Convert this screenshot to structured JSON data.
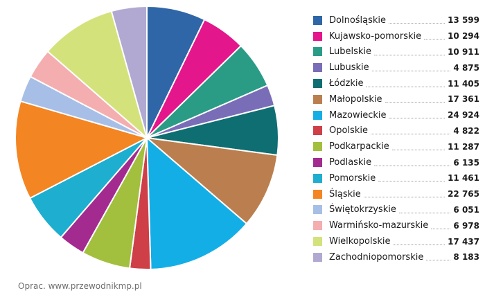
{
  "chart_data": {
    "type": "pie",
    "categories": [
      "Dolnośląskie",
      "Kujawsko-pomorskie",
      "Lubelskie",
      "Lubuskie",
      "Łódzkie",
      "Małopolskie",
      "Mazowieckie",
      "Opolskie",
      "Podkarpackie",
      "Podlaskie",
      "Pomorskie",
      "Śląskie",
      "Świętokrzyskie",
      "Warmińsko-mazurskie",
      "Wielkopolskie",
      "Zachodniopomorskie"
    ],
    "values": [
      13599,
      10294,
      10911,
      4875,
      11405,
      17361,
      24924,
      4822,
      11287,
      6135,
      11461,
      22765,
      6051,
      6978,
      17437,
      8183
    ],
    "value_labels": [
      "13 599",
      "10 294",
      "10 911",
      "4 875",
      "11 405",
      "17 361",
      "24 924",
      "4 822",
      "11 287",
      "6 135",
      "11 461",
      "22 765",
      "6 051",
      "6 978",
      "17 437",
      "8 183"
    ],
    "colors": [
      "#2f66a7",
      "#e4168c",
      "#2a9c86",
      "#7a6db8",
      "#0f6e72",
      "#bb7f4f",
      "#14aee6",
      "#cf3f48",
      "#a2bf3e",
      "#a32b90",
      "#1eaecf",
      "#f38523",
      "#a7bfe6",
      "#f4aeb0",
      "#d4e27c",
      "#b1a9d2"
    ],
    "legend_position": "right",
    "start": "top",
    "direction": "clockwise"
  },
  "source_text": "Oprac. www.przewodnikmp.pl"
}
